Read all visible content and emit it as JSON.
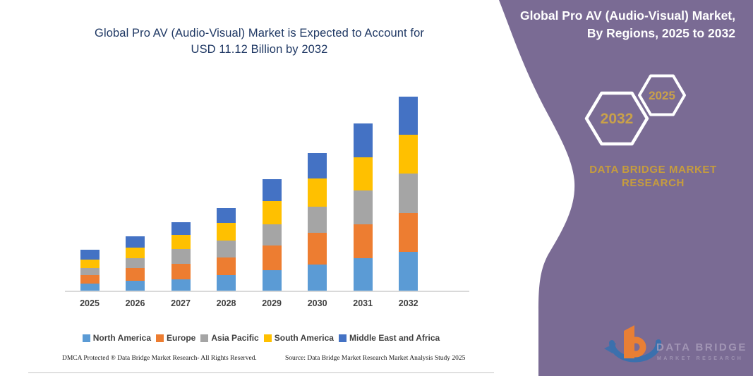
{
  "title": {
    "line1": "Global Pro AV (Audio-Visual) Market is Expected to Account for",
    "line2": "USD 11.12 Billion by 2032"
  },
  "right_panel": {
    "header_line1": "Global Pro AV (Audio-Visual) Market,",
    "header_line2": "By Regions, 2025 to 2032",
    "hexagon_back_label": "2032",
    "hexagon_front_label": "2025",
    "brand_line1": "DATA BRIDGE MARKET",
    "brand_line2": "RESEARCH",
    "logo_wordmark": "DATA BRIDGE",
    "logo_subtext": "MARKET RESEARCH",
    "panel_color": "#7A6B94",
    "gold_color": "#C69C3E",
    "hex_digit_color": "#C9A14A"
  },
  "footer": {
    "left": "DMCA Protected ® Data Bridge Market Research-  All Rights Reserved.",
    "right": "Source: Data Bridge Market Research  Market Analysis Study 2025"
  },
  "chart_data": {
    "type": "bar",
    "stacked": true,
    "title": "Global Pro AV (Audio-Visual) Market is Expected to Account for USD 11.12 Billion by 2032",
    "unit": "USD Billion",
    "xlabel": "",
    "ylabel": "",
    "ylim": [
      0,
      11.5
    ],
    "grid": false,
    "legend_position": "bottom",
    "categories": [
      "2025",
      "2026",
      "2027",
      "2028",
      "2029",
      "2030",
      "2031",
      "2032"
    ],
    "series": [
      {
        "name": "North America",
        "color": "#5B9BD5",
        "values": [
          0.44,
          0.61,
          0.67,
          0.94,
          1.21,
          1.54,
          1.88,
          2.24
        ]
      },
      {
        "name": "Europe",
        "color": "#ED7D31",
        "values": [
          0.47,
          0.73,
          0.89,
          1.01,
          1.41,
          1.81,
          1.95,
          2.22
        ]
      },
      {
        "name": "Asia Pacific",
        "color": "#A5A5A5",
        "values": [
          0.43,
          0.57,
          0.85,
          0.94,
          1.21,
          1.48,
          1.95,
          2.26
        ]
      },
      {
        "name": "South America",
        "color": "#FFC000",
        "values": [
          0.48,
          0.6,
          0.81,
          1.01,
          1.34,
          1.61,
          1.88,
          2.24
        ]
      },
      {
        "name": "Middle East and Africa",
        "color": "#4472C4",
        "values": [
          0.54,
          0.64,
          0.74,
          0.87,
          1.24,
          1.48,
          1.91,
          2.16
        ]
      }
    ],
    "totals": [
      2.36,
      3.15,
      3.96,
      4.77,
      6.41,
      7.92,
      9.57,
      11.12
    ]
  }
}
